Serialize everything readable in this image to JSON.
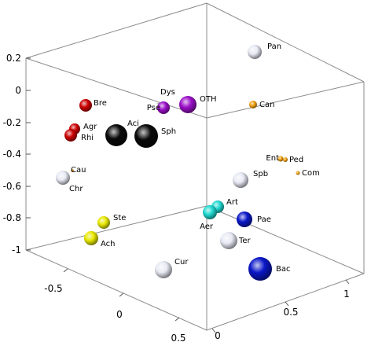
{
  "chart_data": {
    "type": "scatter",
    "title": "",
    "xlabel": "",
    "ylabel": "",
    "zlabel": "",
    "z_ticks": [
      "0.2",
      "0",
      "-0.2",
      "-0.4",
      "-0.6",
      "-0.8",
      "-1"
    ],
    "x_ticks": [
      "-0.5",
      "0",
      "0.5"
    ],
    "y_ticks": [
      "0",
      "0.5",
      "1"
    ],
    "points": [
      {
        "label": "Pan",
        "color": "#e8eaf4",
        "size": 9
      },
      {
        "label": "OTH",
        "color": "#9b10c9",
        "size": 11
      },
      {
        "label": "Dys",
        "color": "#d0d0d0",
        "size": 1.5
      },
      {
        "label": "Pse",
        "color": "#9b10c9",
        "size": 8
      },
      {
        "label": "Can",
        "color": "#f0a010",
        "size": 5
      },
      {
        "label": "Bre",
        "color": "#cc0000",
        "size": 8
      },
      {
        "label": "Aci",
        "color": "#0a0a0a",
        "size": 14
      },
      {
        "label": "Sph",
        "color": "#0a0a0a",
        "size": 15
      },
      {
        "label": "Agr",
        "color": "#cc0000",
        "size": 7
      },
      {
        "label": "Rhi",
        "color": "#cc0000",
        "size": 8
      },
      {
        "label": "Ent",
        "color": "#f0a010",
        "size": 3.5
      },
      {
        "label": "Ped",
        "color": "#f0a010",
        "size": 3
      },
      {
        "label": "Com",
        "color": "#f0a010",
        "size": 2.5
      },
      {
        "label": "Cau",
        "color": "#f0a010",
        "size": 1.8
      },
      {
        "label": "Chr",
        "color": "#e8eaf4",
        "size": 9
      },
      {
        "label": "Spb",
        "color": "#e8eaf4",
        "size": 10
      },
      {
        "label": "Art",
        "color": "#20d8d0",
        "size": 8
      },
      {
        "label": "Aer",
        "color": "#20d8d0",
        "size": 9
      },
      {
        "label": "Pae",
        "color": "#0a18c8",
        "size": 10
      },
      {
        "label": "Ste",
        "color": "#e8e800",
        "size": 8
      },
      {
        "label": "Ach",
        "color": "#e8e800",
        "size": 9
      },
      {
        "label": "Ter",
        "color": "#e8eaf4",
        "size": 11
      },
      {
        "label": "Cur",
        "color": "#e8eaf4",
        "size": 11
      },
      {
        "label": "Bac",
        "color": "#0a18c8",
        "size": 15
      }
    ]
  }
}
